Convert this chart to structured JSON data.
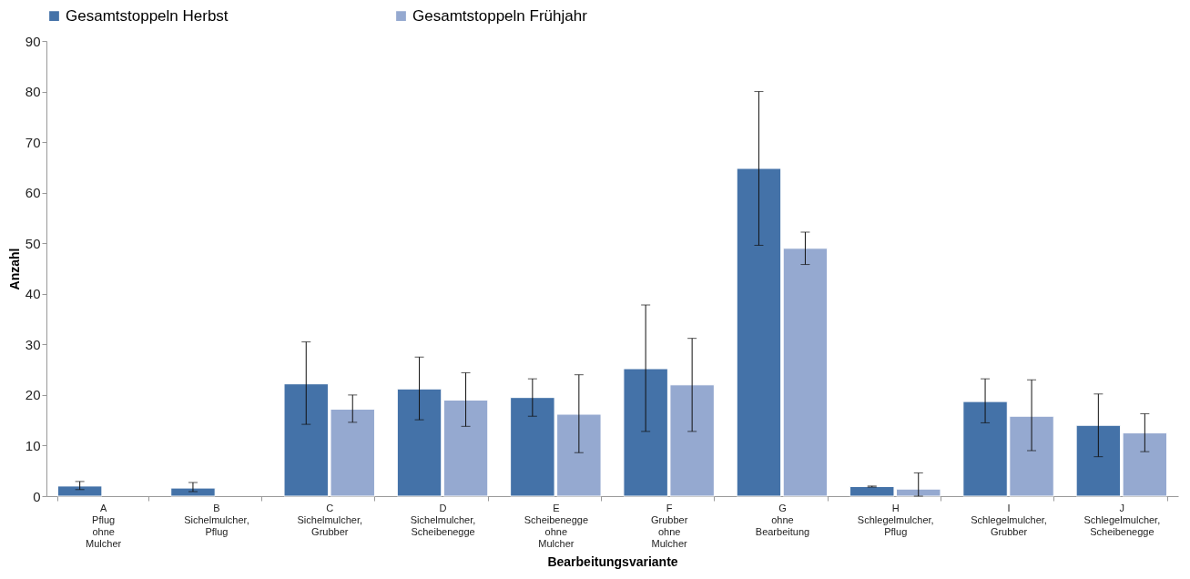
{
  "chart_data": {
    "type": "bar",
    "xlabel": "Bearbeitungsvariante",
    "ylabel": "Anzahl",
    "categories": [
      "A\nPflug\nohne\nMulcher",
      "B\nSichelmulcher,\nPflug",
      "C\nSichelmulcher,\nGrubber",
      "D\nSichelmulcher,\nScheibenegge",
      "E\nScheibenegge\nohne\nMulcher",
      "F\nGrubber\nohne\nMulcher",
      "G\nohne\nBearbeitung",
      "H\nSchlegelmulcher,\nPflug",
      "I\nSchlegelmulcher,\nGrubber",
      "J\nSchlegelmulcher,\nScheibenegge"
    ],
    "series": [
      {
        "name": "Gesamtstoppeln Herbst",
        "color": "#4472a8",
        "values": [
          2.0,
          1.6,
          22.2,
          21.2,
          19.5,
          25.2,
          64.8,
          1.9,
          18.7,
          14.0
        ],
        "errors": [
          [
            1.3,
            2.9
          ],
          [
            0.9,
            2.7
          ],
          [
            14.2,
            30.5
          ],
          [
            15.1,
            27.5
          ],
          [
            15.8,
            23.2
          ],
          [
            12.8,
            37.8
          ],
          [
            49.6,
            80.0
          ],
          [
            1.8,
            2.0
          ],
          [
            14.5,
            23.2
          ],
          [
            7.8,
            20.2
          ]
        ]
      },
      {
        "name": "Gesamtstoppeln Frühjahr",
        "color": "#95a9d0",
        "values": [
          null,
          null,
          17.2,
          19.0,
          16.2,
          22.0,
          49.0,
          1.4,
          15.8,
          12.5
        ],
        "errors": [
          null,
          null,
          [
            14.6,
            20.0
          ],
          [
            13.8,
            24.4
          ],
          [
            8.6,
            24.0
          ],
          [
            12.8,
            31.2
          ],
          [
            45.8,
            52.2
          ],
          [
            0,
            4.6
          ],
          [
            9.0,
            23.0
          ],
          [
            8.8,
            16.3
          ]
        ]
      }
    ],
    "ylim": [
      0,
      90
    ],
    "yticks": [
      0,
      10,
      20,
      30,
      40,
      50,
      60,
      70,
      80,
      90
    ],
    "grid": false,
    "legend": "top"
  }
}
